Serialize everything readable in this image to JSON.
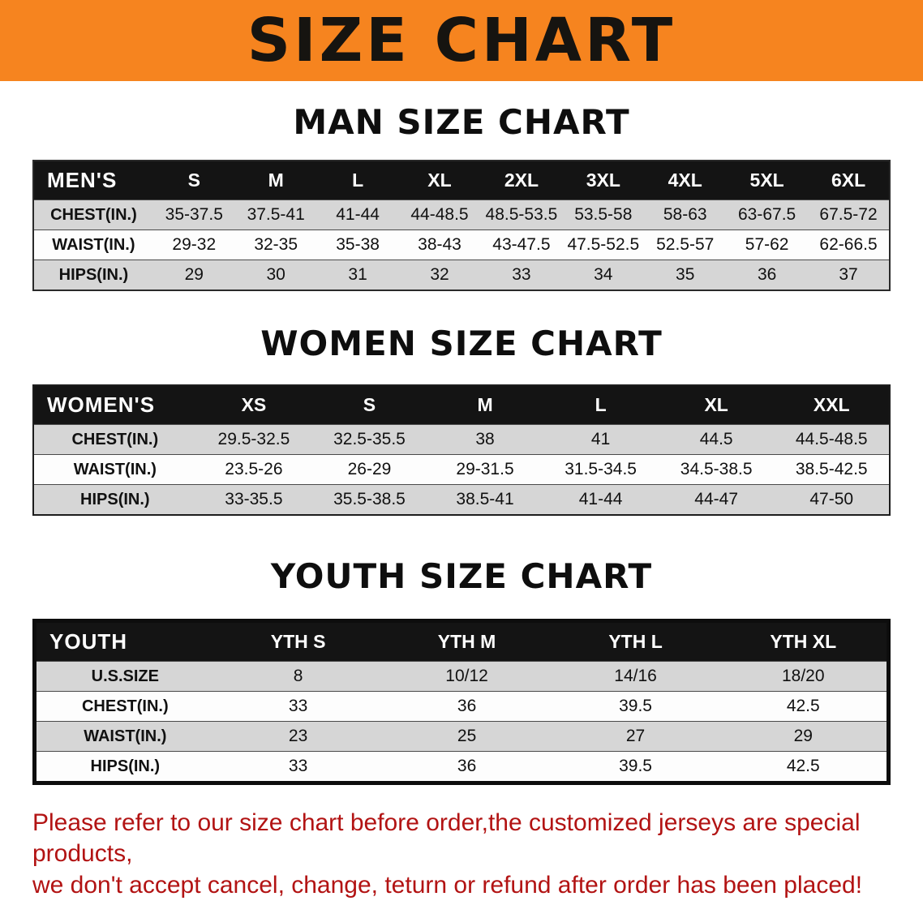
{
  "banner": {
    "title": "SIZE CHART"
  },
  "sections": {
    "men": {
      "heading": "MAN SIZE CHART",
      "table": {
        "header": [
          "MEN'S",
          "S",
          "M",
          "L",
          "XL",
          "2XL",
          "3XL",
          "4XL",
          "5XL",
          "6XL"
        ],
        "rows": [
          {
            "label": "CHEST(IN.)",
            "values": [
              "35-37.5",
              "37.5-41",
              "41-44",
              "44-48.5",
              "48.5-53.5",
              "53.5-58",
              "58-63",
              "63-67.5",
              "67.5-72"
            ]
          },
          {
            "label": "WAIST(IN.)",
            "values": [
              "29-32",
              "32-35",
              "35-38",
              "38-43",
              "43-47.5",
              "47.5-52.5",
              "52.5-57",
              "57-62",
              "62-66.5"
            ]
          },
          {
            "label": "HIPS(IN.)",
            "values": [
              "29",
              "30",
              "31",
              "32",
              "33",
              "34",
              "35",
              "36",
              "37"
            ]
          }
        ]
      }
    },
    "women": {
      "heading": "WOMEN SIZE CHART",
      "table": {
        "header": [
          "WOMEN'S",
          "XS",
          "S",
          "M",
          "L",
          "XL",
          "XXL"
        ],
        "rows": [
          {
            "label": "CHEST(IN.)",
            "values": [
              "29.5-32.5",
              "32.5-35.5",
              "38",
              "41",
              "44.5",
              "44.5-48.5"
            ]
          },
          {
            "label": "WAIST(IN.)",
            "values": [
              "23.5-26",
              "26-29",
              "29-31.5",
              "31.5-34.5",
              "34.5-38.5",
              "38.5-42.5"
            ]
          },
          {
            "label": "HIPS(IN.)",
            "values": [
              "33-35.5",
              "35.5-38.5",
              "38.5-41",
              "41-44",
              "44-47",
              "47-50"
            ]
          }
        ]
      }
    },
    "youth": {
      "heading": "YOUTH SIZE CHART",
      "table": {
        "header": [
          "YOUTH",
          "YTH S",
          "YTH M",
          "YTH L",
          "YTH XL"
        ],
        "rows": [
          {
            "label": "U.S.SIZE",
            "values": [
              "8",
              "10/12",
              "14/16",
              "18/20"
            ]
          },
          {
            "label": "CHEST(IN.)",
            "values": [
              "33",
              "36",
              "39.5",
              "42.5"
            ]
          },
          {
            "label": "WAIST(IN.)",
            "values": [
              "23",
              "25",
              "27",
              "29"
            ]
          },
          {
            "label": "HIPS(IN.)",
            "values": [
              "33",
              "36",
              "39.5",
              "42.5"
            ]
          }
        ]
      }
    }
  },
  "disclaimer": {
    "line1": "Please refer to our size chart before order,the customized jerseys are special products,",
    "line2": "we don't accept cancel, change, teturn or refund after order has been placed!"
  },
  "colors": {
    "banner_orange": "#f6841f",
    "header_black": "#141414",
    "row_gray": "#d6d6d6",
    "disclaimer_red": "#b21313"
  }
}
